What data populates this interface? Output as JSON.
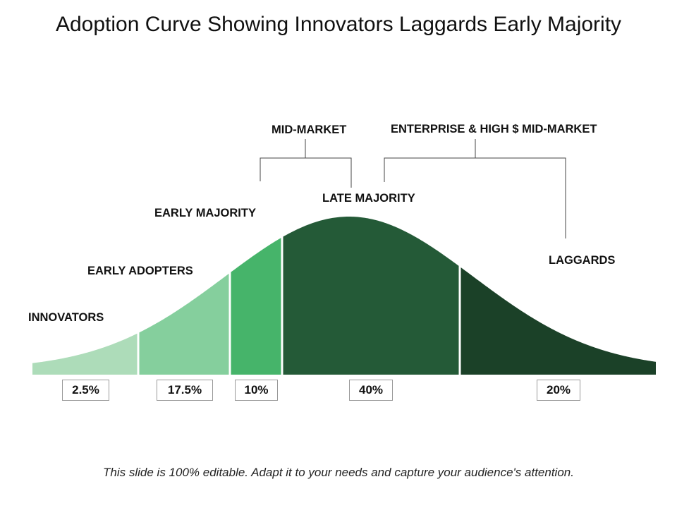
{
  "title": "Adoption Curve Showing Innovators Laggards Early Majority",
  "segments": [
    {
      "label": "INNOVATORS",
      "percent": "2.5%",
      "color": "#addcb9"
    },
    {
      "label": "EARLY ADOPTERS",
      "percent": "17.5%",
      "color": "#85cf9d"
    },
    {
      "label": "EARLY MAJORITY",
      "percent": "10%",
      "color": "#46b46a"
    },
    {
      "label": "LATE MAJORITY",
      "percent": "40%",
      "color": "#245a37"
    },
    {
      "label": "LAGGARDS",
      "percent": "20%",
      "color": "#1b4128"
    }
  ],
  "groups": {
    "mid_market": "MID-MARKET",
    "enterprise": "ENTERPRISE & HIGH $ MID-MARKET"
  },
  "footer": "This slide is 100% editable. Adapt it to your needs and capture your audience's attention."
}
